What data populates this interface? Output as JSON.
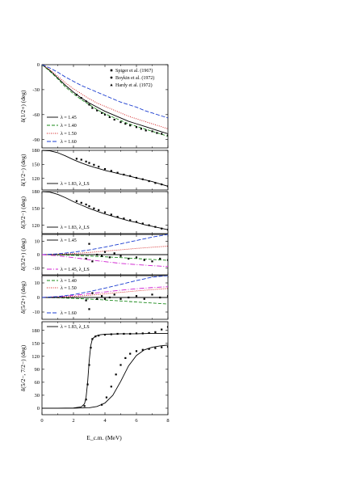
{
  "xlabel": "E_c.m. (MeV)",
  "x_ticks": [
    "0",
    "2",
    "4",
    "6",
    "8"
  ],
  "chart_data": [
    {
      "type": "line",
      "ylabel": "δ(1/2+) (deg)",
      "xlim": [
        0,
        8
      ],
      "ylim": [
        -100,
        0
      ],
      "y_ticks": [
        {
          "v": 0,
          "t": "0"
        },
        {
          "v": -30,
          "t": "-30"
        },
        {
          "v": -60,
          "t": "-60"
        },
        {
          "v": -90,
          "t": "-90"
        }
      ],
      "exp_legend": [
        {
          "label": "Spiger et al. (1967)",
          "marker": "square"
        },
        {
          "label": "Boykin et al. (1972)",
          "marker": "circle"
        },
        {
          "label": "Hardy et al. (1972)",
          "marker": "triangle"
        }
      ],
      "series": [
        {
          "name": "λ = 1.45",
          "color": "#000000",
          "dash": "",
          "x": [
            0,
            0.5,
            1,
            1.5,
            2,
            2.5,
            3,
            3.5,
            4,
            4.5,
            5,
            5.5,
            6,
            6.5,
            7,
            7.5,
            8
          ],
          "y": [
            0,
            -7,
            -16,
            -25,
            -33,
            -40,
            -46,
            -51,
            -56,
            -60,
            -64,
            -68,
            -71,
            -74,
            -77,
            -80,
            -83
          ]
        },
        {
          "name": "λ = 1.40",
          "color": "#1a8a1a",
          "dash": "4,2",
          "x": [
            0,
            0.5,
            1,
            1.5,
            2,
            2.5,
            3,
            3.5,
            4,
            4.5,
            5,
            5.5,
            6,
            6.5,
            7,
            7.5,
            8
          ],
          "y": [
            0,
            -8,
            -17,
            -27,
            -35,
            -42,
            -48,
            -54,
            -59,
            -63,
            -67,
            -71,
            -74,
            -77,
            -80,
            -83,
            -86
          ]
        },
        {
          "name": "λ = 1.50",
          "color": "#d01010",
          "dash": "1,1.5",
          "x": [
            0,
            0.5,
            1,
            1.5,
            2,
            2.5,
            3,
            3.5,
            4,
            4.5,
            5,
            5.5,
            6,
            6.5,
            7,
            7.5,
            8
          ],
          "y": [
            0,
            -6,
            -14,
            -22,
            -29,
            -35,
            -41,
            -46,
            -50,
            -54,
            -58,
            -62,
            -65,
            -68,
            -71,
            -74,
            -77
          ]
        },
        {
          "name": "λ = 1.60",
          "color": "#1a3cd0",
          "dash": "5,2",
          "x": [
            0,
            0.5,
            1,
            1.5,
            2,
            2.5,
            3,
            3.5,
            4,
            4.5,
            5,
            5.5,
            6,
            6.5,
            7,
            7.5,
            8
          ],
          "y": [
            0,
            -4,
            -9,
            -15,
            -20,
            -25,
            -29,
            -33,
            -37,
            -41,
            -45,
            -48,
            -51,
            -55,
            -58,
            -61,
            -64
          ]
        }
      ],
      "points": {
        "x": [
          2.2,
          2.5,
          2.8,
          3.0,
          3.2,
          3.5,
          3.8,
          4.0,
          4.3,
          4.6,
          5.0,
          5.3,
          5.6,
          6.0,
          6.3,
          6.6,
          7.0,
          7.3,
          7.6,
          8.0
        ],
        "y": [
          -36,
          -40,
          -44,
          -48,
          -52,
          -55,
          -58,
          -60,
          -63,
          -66,
          -69,
          -71,
          -73,
          -75,
          -77,
          -79,
          -80,
          -82,
          -83,
          -85
        ]
      },
      "legend": "lower-left"
    },
    {
      "type": "line",
      "ylabel": "δ(1/2−) (deg)",
      "xlim": [
        0,
        8
      ],
      "ylim": [
        95,
        180
      ],
      "y_ticks": [
        {
          "v": 180,
          "t": "180"
        },
        {
          "v": 150,
          "t": "150"
        },
        {
          "v": 120,
          "t": "120"
        }
      ],
      "series": [
        {
          "name": "λ = 1.83, λ_LS",
          "color": "#000000",
          "dash": "",
          "x": [
            0,
            0.5,
            1,
            1.5,
            2,
            2.5,
            3,
            3.5,
            4,
            4.5,
            5,
            5.5,
            6,
            6.5,
            7,
            7.5,
            8
          ],
          "y": [
            180,
            179,
            175,
            168,
            160,
            153,
            147,
            142,
            137,
            133,
            129,
            125,
            121,
            117,
            113,
            108,
            103
          ]
        }
      ],
      "points": {
        "x": [
          2.2,
          2.5,
          2.8,
          3.0,
          3.3,
          3.6,
          4.0,
          4.4,
          4.8,
          5.2,
          5.6,
          6.0,
          6.4,
          6.8,
          7.2,
          7.6,
          8.0
        ],
        "y": [
          162,
          160,
          156,
          153,
          149,
          145,
          140,
          136,
          132,
          128,
          125,
          121,
          118,
          114,
          110,
          107,
          103
        ]
      },
      "legend": "lower-left"
    },
    {
      "type": "line",
      "ylabel": "δ(3/2−) (deg)",
      "xlim": [
        0,
        8
      ],
      "ylim": [
        105,
        180
      ],
      "y_ticks": [
        {
          "v": 180,
          "t": "180"
        },
        {
          "v": 150,
          "t": "150"
        },
        {
          "v": 120,
          "t": "120"
        }
      ],
      "series": [
        {
          "name": "λ = 1.83, λ_LS",
          "color": "#000000",
          "dash": "",
          "x": [
            0,
            0.5,
            1,
            1.5,
            2,
            2.5,
            3,
            3.5,
            4,
            4.5,
            5,
            5.5,
            6,
            6.5,
            7,
            7.5,
            8
          ],
          "y": [
            180,
            179,
            175,
            169,
            162,
            156,
            150,
            145,
            140,
            136,
            132,
            128,
            125,
            121,
            118,
            115,
            112
          ]
        }
      ],
      "points": {
        "x": [
          2.2,
          2.5,
          2.8,
          3.0,
          3.3,
          3.6,
          4.0,
          4.4,
          4.8,
          5.2,
          5.6,
          6.0,
          6.4,
          6.8,
          7.2,
          7.6,
          8.0
        ],
        "y": [
          163,
          160,
          157,
          154,
          150,
          147,
          143,
          139,
          135,
          132,
          129,
          126,
          123,
          120,
          117,
          114,
          112
        ]
      },
      "legend": "lower-left"
    },
    {
      "type": "line",
      "ylabel": "δ(3/2+) (deg)",
      "xlim": [
        0,
        8
      ],
      "ylim": [
        -15,
        15
      ],
      "y_ticks": [
        {
          "v": 10,
          "t": "10"
        },
        {
          "v": 0,
          "t": "0"
        },
        {
          "v": -10,
          "t": "-10"
        }
      ],
      "series": [
        {
          "name": "λ = 1.45",
          "color": "#000000",
          "dash": "",
          "x": [
            0,
            1,
            2,
            3,
            4,
            5,
            6,
            7,
            8
          ],
          "y": [
            0,
            0,
            0,
            0,
            0,
            0,
            0,
            0,
            0
          ]
        },
        {
          "name": "",
          "color": "#1a8a1a",
          "dash": "4,2",
          "x": [
            0,
            1,
            2,
            3,
            4,
            5,
            6,
            7,
            8
          ],
          "y": [
            0,
            -0.2,
            -0.5,
            -1,
            -1.6,
            -2.2,
            -2.9,
            -3.6,
            -4.2
          ]
        },
        {
          "name": "",
          "color": "#d01010",
          "dash": "1,1.5",
          "x": [
            0,
            1,
            2,
            3,
            4,
            5,
            6,
            7,
            8
          ],
          "y": [
            0,
            0.3,
            0.8,
            1.6,
            2.6,
            3.6,
            4.6,
            5.5,
            6.3
          ]
        },
        {
          "name": "",
          "color": "#1a3cd0",
          "dash": "5,2",
          "x": [
            0,
            1,
            2,
            3,
            4,
            5,
            6,
            7,
            8
          ],
          "y": [
            0,
            0.6,
            1.8,
            3.5,
            5.6,
            8,
            10.5,
            13,
            15
          ]
        },
        {
          "name": "λ = 1.45, λ_LS",
          "color": "#d01fd0",
          "dash": "6,2,1,2",
          "x": [
            0,
            1,
            2,
            3,
            4,
            5,
            6,
            7,
            8
          ],
          "y": [
            0,
            -0.8,
            -2.2,
            -3.8,
            -5.2,
            -6.5,
            -7.4,
            -8.2,
            -8.8
          ]
        }
      ],
      "points": {
        "x": [
          2.8,
          3.0,
          3.2,
          3.5,
          3.8,
          4.0,
          4.3,
          4.6,
          5.0,
          5.5,
          6.0,
          6.5,
          7.0,
          7.5,
          8.0
        ],
        "y": [
          -3,
          8,
          -5,
          0,
          -1,
          2,
          -2,
          1,
          -1,
          -3,
          -2,
          -4,
          -5,
          -3,
          -4
        ]
      },
      "legend": "left"
    },
    {
      "type": "line",
      "ylabel": "δ(5/2+) (deg)",
      "xlim": [
        0,
        8
      ],
      "ylim": [
        -15,
        15
      ],
      "y_ticks": [
        {
          "v": 10,
          "t": "10"
        },
        {
          "v": 0,
          "t": "0"
        },
        {
          "v": -10,
          "t": "-10"
        }
      ],
      "series": [
        {
          "name": "λ = 1.40",
          "color": "#1a8a1a",
          "dash": "4,2",
          "x": [
            0,
            1,
            2,
            3,
            4,
            5,
            6,
            7,
            8
          ],
          "y": [
            0,
            -0.2,
            -0.6,
            -1.1,
            -1.7,
            -2.4,
            -3.1,
            -3.8,
            -4.5
          ]
        },
        {
          "name": "λ = 1.50",
          "color": "#d01010",
          "dash": "1,1.5",
          "x": [
            0,
            1,
            2,
            3,
            4,
            5,
            6,
            7,
            8
          ],
          "y": [
            0,
            0.2,
            0.7,
            1.5,
            2.5,
            3.5,
            4.5,
            5.4,
            6.2
          ]
        },
        {
          "name": "",
          "color": "#d01fd0",
          "dash": "6,2,1,2",
          "x": [
            0,
            1,
            2,
            3,
            4,
            5,
            6,
            7,
            8
          ],
          "y": [
            0,
            0.5,
            1.4,
            2.6,
            3.8,
            5,
            6,
            6.8,
            7.4
          ]
        },
        {
          "name": "",
          "color": "#000000",
          "dash": "",
          "x": [
            0,
            1,
            2,
            3,
            4,
            5,
            6,
            7,
            8
          ],
          "y": [
            0,
            0,
            0,
            0,
            0,
            0,
            0,
            0,
            0
          ]
        },
        {
          "name": "λ = 1.60",
          "color": "#1a3cd0",
          "dash": "5,2",
          "x": [
            0,
            1,
            2,
            3,
            4,
            5,
            6,
            7,
            8
          ],
          "y": [
            0,
            0.6,
            2,
            4,
            6.4,
            9,
            11.6,
            14,
            15
          ]
        }
      ],
      "points": {
        "x": [
          2.8,
          3.0,
          3.2,
          3.5,
          3.8,
          4.0,
          4.3,
          4.6,
          5.0,
          5.5,
          6.0,
          6.5,
          7.0,
          7.5,
          8.0
        ],
        "y": [
          -2,
          -8,
          3,
          -1,
          1,
          -1,
          0,
          2,
          -1,
          0,
          1,
          -1,
          2,
          0,
          1
        ]
      },
      "legend": "left"
    },
    {
      "type": "line",
      "ylabel": "δ(5/2−, 7/2−) (deg)",
      "xlim": [
        0,
        8
      ],
      "ylim": [
        -15,
        200
      ],
      "y_ticks": [
        {
          "v": 180,
          "t": "180"
        },
        {
          "v": 150,
          "t": "150"
        },
        {
          "v": 120,
          "t": "120"
        },
        {
          "v": 90,
          "t": "90"
        },
        {
          "v": 60,
          "t": "60"
        },
        {
          "v": 30,
          "t": "30"
        },
        {
          "v": 0,
          "t": "0"
        }
      ],
      "series": [
        {
          "name": "λ = 1.83, λ_LS",
          "color": "#000000",
          "dash": "",
          "x": [
            0,
            1,
            2,
            2.5,
            2.7,
            2.8,
            2.9,
            3.0,
            3.1,
            3.2,
            3.4,
            3.7,
            4.0,
            5.0,
            6.0,
            7.0,
            8.0
          ],
          "y": [
            0,
            0,
            0.5,
            3,
            10,
            25,
            60,
            110,
            145,
            160,
            167,
            170,
            171,
            172,
            172,
            173,
            173
          ]
        },
        {
          "name": "",
          "color": "#000000",
          "dash": "",
          "x": [
            0,
            1,
            2,
            3,
            3.5,
            4.0,
            4.5,
            5.0,
            5.5,
            6.0,
            6.5,
            7.0,
            7.5,
            8.0
          ],
          "y": [
            0,
            0,
            0,
            1,
            4,
            12,
            30,
            62,
            98,
            122,
            135,
            141,
            144,
            146
          ]
        }
      ],
      "points": {
        "x": [
          2.7,
          2.8,
          2.9,
          3.0,
          3.1,
          3.2,
          3.4,
          3.6,
          4.0,
          4.4,
          4.8,
          5.2,
          5.6,
          6.0,
          6.4,
          6.8,
          7.2,
          7.6,
          8.0,
          3.8,
          4.1,
          4.4,
          4.7,
          5.0,
          5.3,
          5.6,
          6.0,
          6.4,
          6.8,
          7.2,
          7.6,
          8.0
        ],
        "y": [
          5,
          20,
          55,
          100,
          140,
          160,
          166,
          168,
          170,
          171,
          172,
          172,
          172,
          173,
          173,
          174,
          176,
          182,
          188,
          8,
          25,
          50,
          78,
          100,
          116,
          126,
          132,
          135,
          137,
          139,
          141,
          142
        ]
      },
      "legend": "top-left"
    }
  ]
}
